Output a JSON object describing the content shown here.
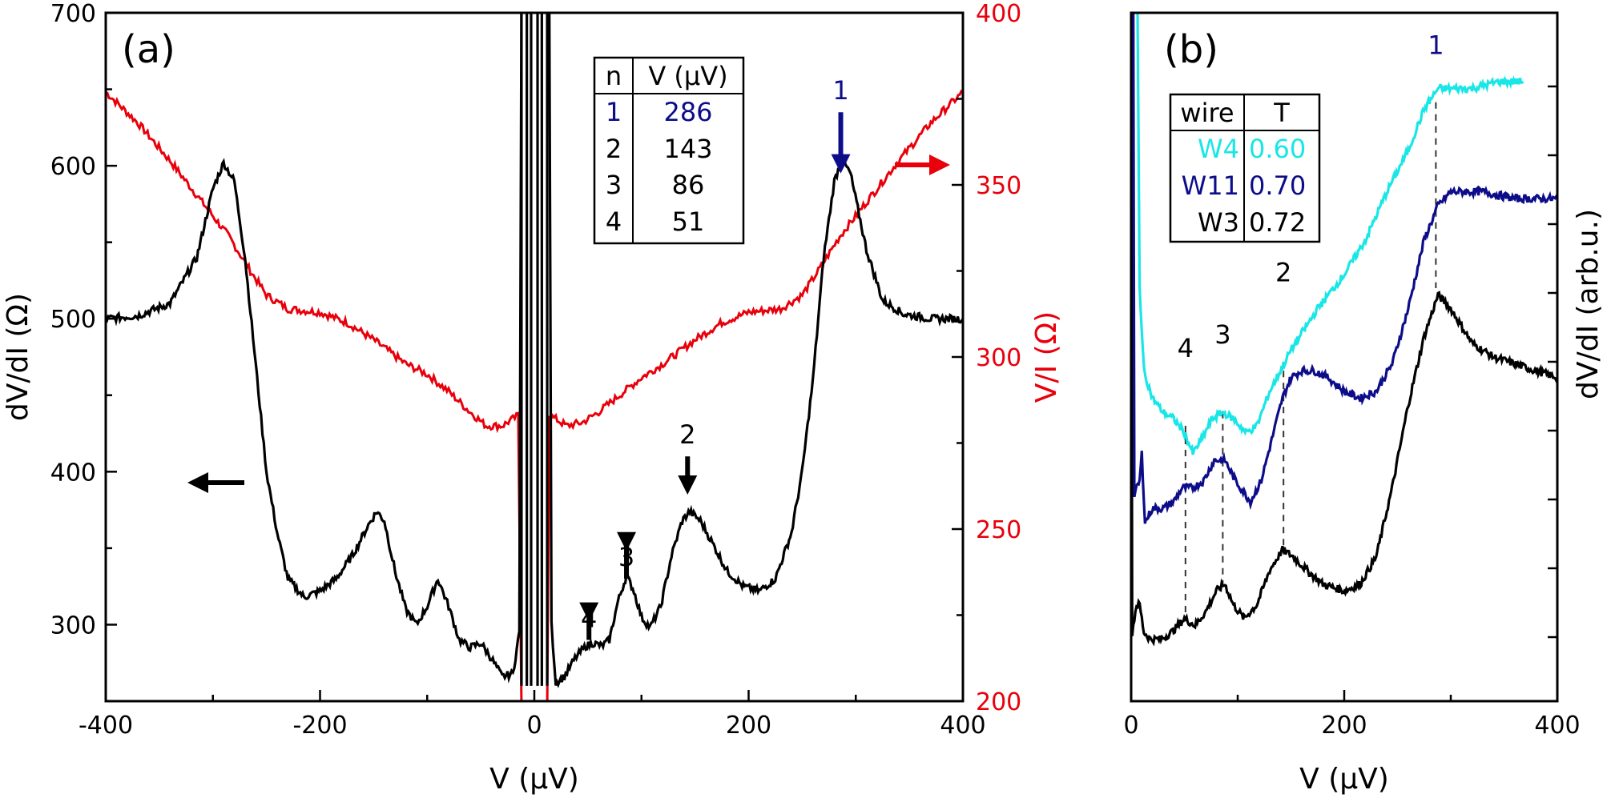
{
  "colors": {
    "black": "#000000",
    "red": "#e8000b",
    "navy": "#0d0d8a",
    "cyan": "#19e6e6"
  },
  "chart_data": [
    {
      "panel": "(a)",
      "type": "line",
      "xlabel": "V (µV)",
      "ylabel": "dV/dI (Ω)",
      "y2label": "V/I (Ω)",
      "xlim": [
        -400,
        400
      ],
      "ylim": [
        250,
        700
      ],
      "y2lim": [
        200,
        400
      ],
      "xticks": [
        "-400",
        "-200",
        "0",
        "200",
        "400"
      ],
      "yticks": [
        "300",
        "400",
        "500",
        "600",
        "700"
      ],
      "y2ticks": [
        "200",
        "250",
        "300",
        "350",
        "400"
      ],
      "series": [
        {
          "axis": "left",
          "color": "#000000",
          "points": [
            [
              -400,
              500
            ],
            [
              -370,
              502
            ],
            [
              -340,
              510
            ],
            [
              -315,
              540
            ],
            [
              -300,
              585
            ],
            [
              -290,
              602
            ],
            [
              -280,
              590
            ],
            [
              -270,
              540
            ],
            [
              -260,
              470
            ],
            [
              -250,
              400
            ],
            [
              -240,
              360
            ],
            [
              -230,
              330
            ],
            [
              -215,
              318
            ],
            [
              -200,
              322
            ],
            [
              -185,
              330
            ],
            [
              -170,
              345
            ],
            [
              -155,
              365
            ],
            [
              -147,
              374
            ],
            [
              -140,
              368
            ],
            [
              -130,
              335
            ],
            [
              -120,
              310
            ],
            [
              -110,
              300
            ],
            [
              -100,
              312
            ],
            [
              -90,
              330
            ],
            [
              -80,
              312
            ],
            [
              -70,
              290
            ],
            [
              -60,
              285
            ],
            [
              -50,
              288
            ],
            [
              -40,
              278
            ],
            [
              -30,
              266
            ],
            [
              -20,
              268
            ],
            [
              -14,
              295
            ],
            [
              -12,
              700
            ]
          ],
          "points2": [
            [
              14,
              700
            ],
            [
              16,
              300
            ],
            [
              20,
              262
            ],
            [
              28,
              266
            ],
            [
              38,
              278
            ],
            [
              48,
              286
            ],
            [
              55,
              288
            ],
            [
              63,
              286
            ],
            [
              70,
              290
            ],
            [
              78,
              315
            ],
            [
              86,
              332
            ],
            [
              93,
              322
            ],
            [
              100,
              305
            ],
            [
              108,
              298
            ],
            [
              118,
              312
            ],
            [
              128,
              345
            ],
            [
              138,
              368
            ],
            [
              145,
              374
            ],
            [
              155,
              368
            ],
            [
              165,
              355
            ],
            [
              180,
              335
            ],
            [
              195,
              325
            ],
            [
              210,
              322
            ],
            [
              225,
              330
            ],
            [
              240,
              360
            ],
            [
              250,
              400
            ],
            [
              260,
              460
            ],
            [
              270,
              540
            ],
            [
              280,
              590
            ],
            [
              287,
              604
            ],
            [
              295,
              595
            ],
            [
              310,
              545
            ],
            [
              325,
              512
            ],
            [
              345,
              503
            ],
            [
              370,
              500
            ],
            [
              400,
              500
            ]
          ],
          "spike_near_zero": [
            [
              -12,
              700
            ],
            [
              -7,
              700
            ],
            [
              -3,
              700
            ],
            [
              3,
              700
            ],
            [
              7,
              700
            ],
            [
              12,
              700
            ]
          ]
        },
        {
          "axis": "right",
          "color": "#e8000b",
          "points": [
            [
              -400,
              377
            ],
            [
              -370,
              368
            ],
            [
              -340,
              357
            ],
            [
              -310,
              345
            ],
            [
              -285,
              335
            ],
            [
              -265,
              325
            ],
            [
              -250,
              318
            ],
            [
              -230,
              314
            ],
            [
              -200,
              313
            ],
            [
              -175,
              310
            ],
            [
              -150,
              305
            ],
            [
              -120,
              298
            ],
            [
              -100,
              295
            ],
            [
              -80,
              290
            ],
            [
              -60,
              284
            ],
            [
              -45,
              280
            ],
            [
              -30,
              280
            ],
            [
              -20,
              282
            ],
            [
              -15,
              283
            ],
            [
              -12,
              200
            ]
          ],
          "points2": [
            [
              12,
              200
            ],
            [
              14,
              283
            ],
            [
              20,
              282
            ],
            [
              30,
              280
            ],
            [
              45,
              281
            ],
            [
              60,
              284
            ],
            [
              80,
              289
            ],
            [
              100,
              294
            ],
            [
              120,
              298
            ],
            [
              150,
              305
            ],
            [
              175,
              310
            ],
            [
              200,
              313
            ],
            [
              230,
              314
            ],
            [
              250,
              318
            ],
            [
              265,
              325
            ],
            [
              285,
              335
            ],
            [
              310,
              345
            ],
            [
              340,
              357
            ],
            [
              370,
              368
            ],
            [
              400,
              377
            ]
          ]
        }
      ],
      "annotations": [
        {
          "label": "1",
          "x": 286,
          "color": "#0d0d8a"
        },
        {
          "label": "2",
          "x": 143,
          "color": "#000000"
        },
        {
          "label": "3",
          "x": 86,
          "color": "#000000"
        },
        {
          "label": "4",
          "x": 51,
          "color": "#000000"
        }
      ],
      "table": {
        "headers": [
          "n",
          "V (µV)"
        ],
        "rows": [
          [
            "1",
            "286"
          ],
          [
            "2",
            "143"
          ],
          [
            "3",
            "86"
          ],
          [
            "4",
            "51"
          ]
        ]
      }
    },
    {
      "panel": "(b)",
      "type": "line",
      "xlabel": "V (µV)",
      "ylabel": "dV/dI (arb.u.)",
      "xlim": [
        0,
        400
      ],
      "ylim": [
        0,
        100
      ],
      "xticks": [
        "0",
        "200",
        "400"
      ],
      "series": [
        {
          "name": "W4",
          "color": "#19e6e6",
          "points": [
            [
              6,
              100
            ],
            [
              8,
              60
            ],
            [
              12,
              48
            ],
            [
              20,
              44
            ],
            [
              30,
              42
            ],
            [
              40,
              41
            ],
            [
              50,
              39
            ],
            [
              58,
              36
            ],
            [
              66,
              38
            ],
            [
              76,
              41
            ],
            [
              86,
              42
            ],
            [
              96,
              41
            ],
            [
              108,
              39
            ],
            [
              118,
              40
            ],
            [
              130,
              45
            ],
            [
              150,
              51
            ],
            [
              175,
              57
            ],
            [
              200,
              62
            ],
            [
              220,
              67
            ],
            [
              240,
              74
            ],
            [
              260,
              80
            ],
            [
              275,
              86
            ],
            [
              288,
              89
            ],
            [
              300,
              89
            ],
            [
              320,
              89
            ],
            [
              345,
              90
            ],
            [
              368,
              90
            ]
          ]
        },
        {
          "name": "W11",
          "color": "#0d0d8a",
          "points": [
            [
              2,
              100
            ],
            [
              3,
              30
            ],
            [
              8,
              32
            ],
            [
              10,
              36
            ],
            [
              13,
              26
            ],
            [
              20,
              28
            ],
            [
              30,
              28
            ],
            [
              40,
              29
            ],
            [
              48,
              31
            ],
            [
              58,
              31
            ],
            [
              68,
              32
            ],
            [
              78,
              35
            ],
            [
              88,
              35
            ],
            [
              98,
              32
            ],
            [
              112,
              29
            ],
            [
              122,
              32
            ],
            [
              132,
              38
            ],
            [
              142,
              44
            ],
            [
              150,
              47
            ],
            [
              160,
              48
            ],
            [
              172,
              48
            ],
            [
              185,
              47
            ],
            [
              200,
              45
            ],
            [
              215,
              44
            ],
            [
              230,
              45
            ],
            [
              245,
              49
            ],
            [
              260,
              57
            ],
            [
              275,
              67
            ],
            [
              288,
              72
            ],
            [
              300,
              74
            ],
            [
              330,
              74
            ],
            [
              360,
              73
            ],
            [
              400,
              73
            ]
          ]
        },
        {
          "name": "W3",
          "color": "#000000",
          "points": [
            [
              0,
              100
            ],
            [
              1,
              10
            ],
            [
              5,
              14
            ],
            [
              8,
              14
            ],
            [
              12,
              10
            ],
            [
              18,
              9
            ],
            [
              28,
              9
            ],
            [
              38,
              10
            ],
            [
              50,
              12
            ],
            [
              60,
              11
            ],
            [
              70,
              13
            ],
            [
              80,
              16
            ],
            [
              88,
              17
            ],
            [
              96,
              14
            ],
            [
              106,
              12
            ],
            [
              118,
              14
            ],
            [
              130,
              19
            ],
            [
              142,
              22
            ],
            [
              152,
              21
            ],
            [
              165,
              19
            ],
            [
              180,
              17
            ],
            [
              200,
              16
            ],
            [
              215,
              17
            ],
            [
              230,
              21
            ],
            [
              245,
              31
            ],
            [
              260,
              43
            ],
            [
              275,
              53
            ],
            [
              288,
              59
            ],
            [
              300,
              57
            ],
            [
              320,
              52
            ],
            [
              340,
              50
            ],
            [
              360,
              49
            ],
            [
              380,
              48
            ],
            [
              400,
              47
            ]
          ]
        }
      ],
      "annotations": [
        {
          "label": "1",
          "x": 286,
          "color": "#0d0d8a"
        },
        {
          "label": "2",
          "x": 143,
          "color": "#000000"
        },
        {
          "label": "3",
          "x": 86,
          "color": "#000000"
        },
        {
          "label": "4",
          "x": 51,
          "color": "#000000"
        }
      ],
      "table": {
        "headers": [
          "wire",
          "T"
        ],
        "rows": [
          {
            "wire": "W4",
            "T": "0.60",
            "color": "#19e6e6"
          },
          {
            "wire": "W11",
            "T": "0.70",
            "color": "#0d0d8a"
          },
          {
            "wire": "W3",
            "T": "0.72",
            "color": "#000000"
          }
        ]
      }
    }
  ]
}
